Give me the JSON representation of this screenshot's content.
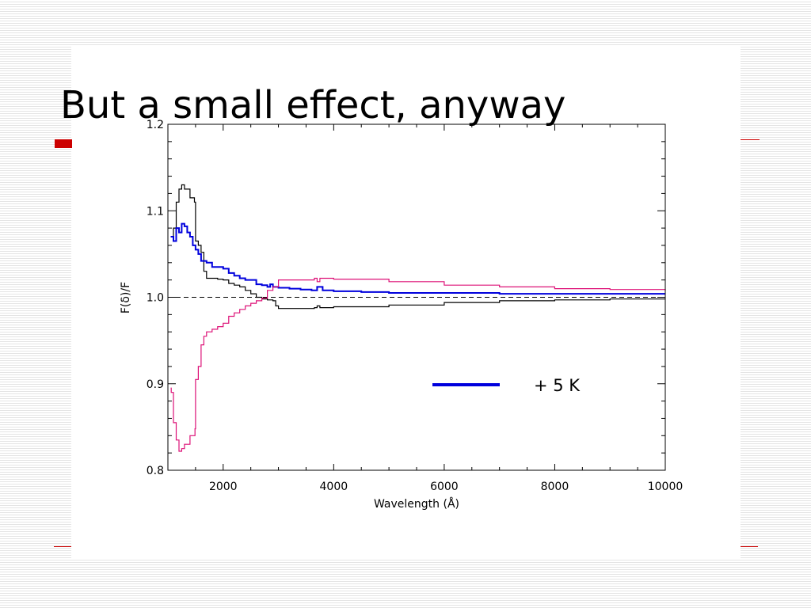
{
  "slide": {
    "title": "But a small effect, anyway",
    "accent_color": "#cc0000"
  },
  "chart_data": {
    "type": "line",
    "xlabel": "Wavelength (Å)",
    "ylabel": "F(δ)/F",
    "xlim": [
      1000,
      10000
    ],
    "ylim": [
      0.8,
      1.2
    ],
    "x_ticks": [
      2000,
      4000,
      6000,
      8000,
      10000
    ],
    "x_tick_labels": [
      "2000",
      "4000",
      "6000",
      "8000",
      "10000"
    ],
    "y_ticks": [
      0.8,
      0.9,
      1.0,
      1.1,
      1.2
    ],
    "y_tick_labels": [
      "0.8",
      "0.9",
      "1.0",
      "1.1",
      "1.2"
    ],
    "grid": false,
    "reference_line": {
      "y": 1.0,
      "style": "dashed",
      "color": "#000000"
    },
    "legend": [
      {
        "label": "+ 5 K",
        "color": "#0000dd",
        "position": "right-center"
      }
    ],
    "series": [
      {
        "color": "#000000",
        "x": [
          1050,
          1100,
          1150,
          1200,
          1250,
          1300,
          1400,
          1480,
          1500,
          1550,
          1600,
          1650,
          1700,
          1800,
          1900,
          2000,
          2100,
          2200,
          2300,
          2400,
          2500,
          2600,
          2700,
          2800,
          2900,
          2950,
          3000,
          3200,
          3500,
          3650,
          3700,
          3750,
          4000,
          5000,
          6000,
          7000,
          8000,
          9000,
          10000
        ],
        "y": [
          1.07,
          1.08,
          1.11,
          1.125,
          1.13,
          1.125,
          1.115,
          1.11,
          1.065,
          1.06,
          1.052,
          1.03,
          1.022,
          1.022,
          1.021,
          1.02,
          1.016,
          1.014,
          1.012,
          1.008,
          1.004,
          1.0,
          0.998,
          0.997,
          0.996,
          0.99,
          0.987,
          0.987,
          0.987,
          0.988,
          0.99,
          0.988,
          0.989,
          0.991,
          0.994,
          0.996,
          0.997,
          0.998,
          0.998
        ]
      },
      {
        "name": "+ 5 K",
        "color": "#0000dd",
        "x": [
          1050,
          1100,
          1150,
          1200,
          1250,
          1300,
          1350,
          1400,
          1450,
          1500,
          1550,
          1600,
          1700,
          1800,
          1900,
          2000,
          2100,
          2200,
          2300,
          2400,
          2500,
          2600,
          2700,
          2800,
          2850,
          2900,
          3000,
          3200,
          3400,
          3600,
          3700,
          3800,
          4000,
          4500,
          5000,
          6000,
          7000,
          8000,
          9000,
          10000
        ],
        "y": [
          1.07,
          1.065,
          1.08,
          1.075,
          1.085,
          1.082,
          1.075,
          1.07,
          1.06,
          1.055,
          1.05,
          1.042,
          1.04,
          1.035,
          1.035,
          1.033,
          1.028,
          1.025,
          1.022,
          1.02,
          1.02,
          1.015,
          1.014,
          1.012,
          1.015,
          1.012,
          1.011,
          1.01,
          1.009,
          1.008,
          1.012,
          1.008,
          1.007,
          1.006,
          1.005,
          1.005,
          1.004,
          1.004,
          1.004,
          1.004
        ]
      },
      {
        "color": "#dd1177",
        "x": [
          1050,
          1060,
          1100,
          1150,
          1200,
          1250,
          1300,
          1400,
          1490,
          1500,
          1550,
          1600,
          1650,
          1700,
          1800,
          1900,
          2000,
          2100,
          2200,
          2300,
          2400,
          2500,
          2600,
          2700,
          2800,
          2900,
          3000,
          3200,
          3500,
          3650,
          3700,
          3750,
          4000,
          5000,
          6000,
          7000,
          8000,
          9000,
          10000
        ],
        "y": [
          0.895,
          0.89,
          0.855,
          0.835,
          0.822,
          0.825,
          0.83,
          0.84,
          0.848,
          0.905,
          0.92,
          0.945,
          0.955,
          0.96,
          0.963,
          0.966,
          0.97,
          0.978,
          0.982,
          0.986,
          0.99,
          0.993,
          0.996,
          0.999,
          1.008,
          1.012,
          1.02,
          1.02,
          1.02,
          1.022,
          1.018,
          1.022,
          1.021,
          1.018,
          1.014,
          1.012,
          1.01,
          1.009,
          1.008
        ]
      }
    ]
  }
}
